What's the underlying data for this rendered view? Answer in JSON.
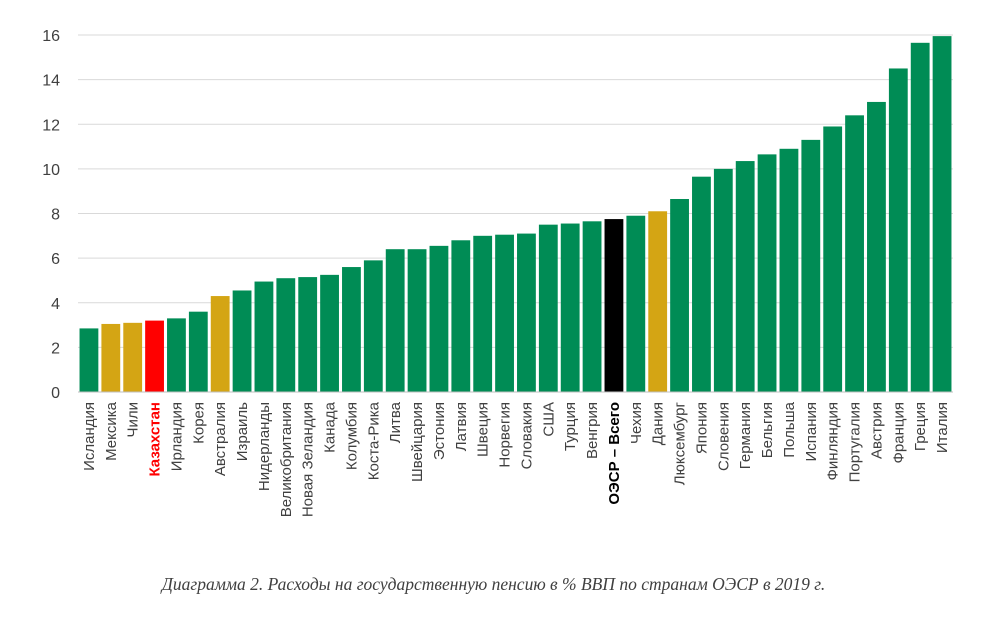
{
  "caption": "Диаграмма 2. Расходы на государственную пенсию в % ВВП по странам ОЭСР в 2019 г.",
  "colors": {
    "default": "#008c55",
    "highlight": "#d4a514",
    "kazakhstan": "#ff0000",
    "oecd": "#000000",
    "grid": "#d9d9d9"
  },
  "chart_data": {
    "type": "bar",
    "title": "",
    "xlabel": "",
    "ylabel": "",
    "ylim": [
      0,
      16
    ],
    "yticks": [
      0,
      2,
      4,
      6,
      8,
      10,
      12,
      14,
      16
    ],
    "grid": true,
    "categories": [
      "Исландия",
      "Мексика",
      "Чили",
      "Казахстан",
      "Ирландия",
      "Корея",
      "Австралия",
      "Израиль",
      "Нидерланды",
      "Великобритания",
      "Новая Зеландия",
      "Канада",
      "Колумбия",
      "Коста-Рика",
      "Литва",
      "Швейцария",
      "Эстония",
      "Латвия",
      "Швеция",
      "Норвегия",
      "Словакия",
      "США",
      "Турция",
      "Венгрия",
      "ОЭСР – Всего",
      "Чехия",
      "Дания",
      "Люксембург",
      "Япония",
      "Словения",
      "Германия",
      "Бельгия",
      "Польша",
      "Испания",
      "Финляндия",
      "Португалия",
      "Австрия",
      "Франция",
      "Греция",
      "Италия"
    ],
    "values": [
      2.85,
      3.05,
      3.1,
      3.2,
      3.3,
      3.6,
      4.3,
      4.55,
      4.95,
      5.1,
      5.15,
      5.25,
      5.6,
      5.9,
      6.4,
      6.4,
      6.55,
      6.8,
      7.0,
      7.05,
      7.1,
      7.5,
      7.55,
      7.65,
      7.75,
      7.9,
      8.1,
      8.65,
      9.65,
      10.0,
      10.35,
      10.65,
      10.9,
      11.3,
      11.9,
      12.4,
      13.0,
      14.5,
      15.65,
      15.95
    ],
    "bar_colors": [
      "default",
      "highlight",
      "highlight",
      "kazakhstan",
      "default",
      "default",
      "highlight",
      "default",
      "default",
      "default",
      "default",
      "default",
      "default",
      "default",
      "default",
      "default",
      "default",
      "default",
      "default",
      "default",
      "default",
      "default",
      "default",
      "default",
      "oecd",
      "default",
      "highlight",
      "default",
      "default",
      "default",
      "default",
      "default",
      "default",
      "default",
      "default",
      "default",
      "default",
      "default",
      "default",
      "default"
    ]
  }
}
